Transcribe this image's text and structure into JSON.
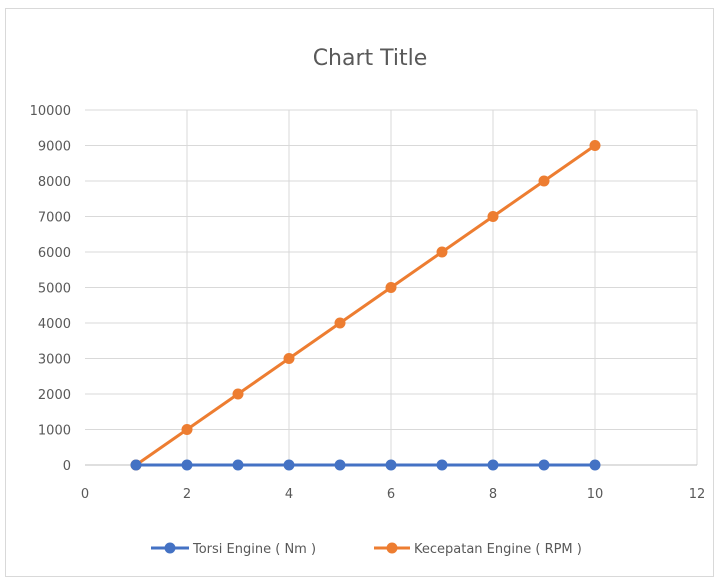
{
  "chart_data": {
    "type": "scatter",
    "title": "Chart Title",
    "xlim": [
      0,
      12
    ],
    "ylim": [
      0,
      10000
    ],
    "x_ticks": [
      0,
      2,
      4,
      6,
      8,
      10,
      12
    ],
    "y_ticks": [
      0,
      1000,
      2000,
      3000,
      4000,
      5000,
      6000,
      7000,
      8000,
      9000,
      10000
    ],
    "grid": true,
    "legend_position": "bottom",
    "x": [
      1,
      2,
      3,
      4,
      5,
      6,
      7,
      8,
      9,
      10
    ],
    "series": [
      {
        "name": "Torsi Engine ( Nm )",
        "color": "#4472c4",
        "values": [
          0,
          0,
          0,
          0,
          0,
          0,
          0,
          0,
          0,
          0
        ]
      },
      {
        "name": "Kecepatan Engine ( RPM )",
        "color": "#ed7d31",
        "values": [
          0,
          1000,
          2000,
          3000,
          4000,
          5000,
          6000,
          7000,
          8000,
          9000
        ]
      }
    ]
  }
}
